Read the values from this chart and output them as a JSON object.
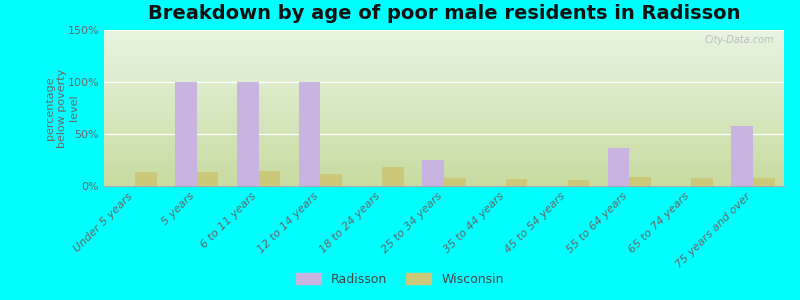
{
  "title": "Breakdown by age of poor male residents in Radisson",
  "categories": [
    "Under 5 years",
    "5 years",
    "6 to 11 years",
    "12 to 14 years",
    "18 to 24 years",
    "25 to 34 years",
    "35 to 44 years",
    "45 to 54 years",
    "55 to 64 years",
    "65 to 74 years",
    "75 years and over"
  ],
  "radisson": [
    0,
    100,
    100,
    100,
    0,
    25,
    0,
    0,
    37,
    0,
    58
  ],
  "wisconsin": [
    13,
    13,
    14,
    12,
    18,
    8,
    7,
    6,
    9,
    8,
    8
  ],
  "radisson_color": "#c9b3e0",
  "wisconsin_color": "#ccc87a",
  "background_outer": "#00ffff",
  "grad_top": "#c8dba0",
  "grad_bottom": "#e8f5e2",
  "ylabel": "percentage\nbelow poverty\nlevel",
  "ylim": [
    0,
    150
  ],
  "yticks": [
    0,
    50,
    100,
    150
  ],
  "ytick_labels": [
    "0%",
    "50%",
    "100%",
    "150%"
  ],
  "bar_width": 0.35,
  "title_fontsize": 14,
  "axis_label_fontsize": 8,
  "tick_fontsize": 8,
  "legend_fontsize": 9
}
